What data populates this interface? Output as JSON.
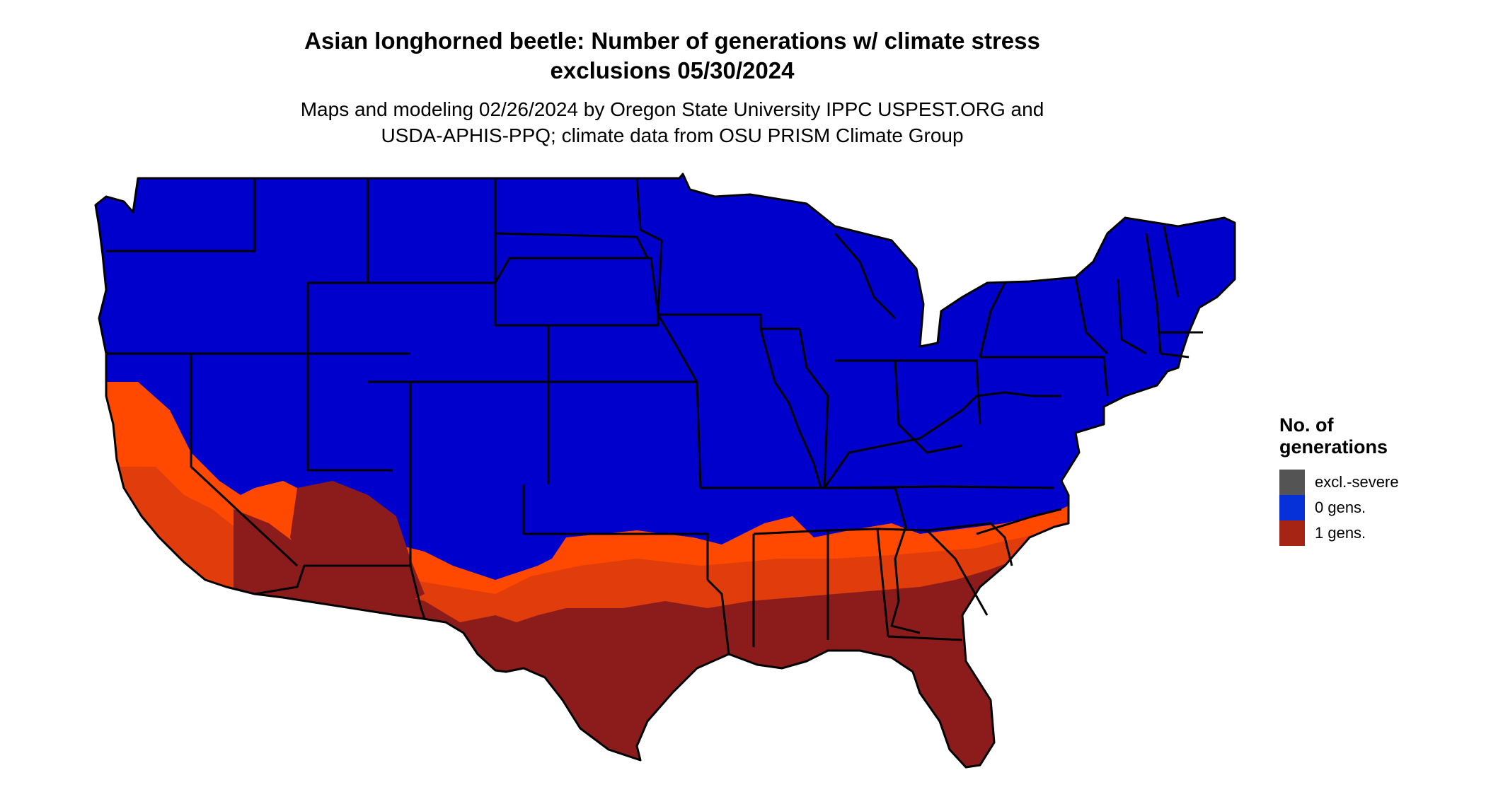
{
  "title": {
    "line1": "Asian longhorned beetle: Number of generations w/ climate stress",
    "line2": "exclusions 05/30/2024"
  },
  "subtitle": {
    "line1": "Maps and modeling 02/26/2024 by Oregon State University IPPC USPEST.ORG and",
    "line2": "USDA-APHIS-PPQ; climate data from OSU PRISM Climate Group"
  },
  "legend": {
    "title_line1": "No. of",
    "title_line2": "generations",
    "items": [
      {
        "label": "excl.-severe",
        "color": "#545454"
      },
      {
        "label": "0 gens.",
        "color": "#0630d8"
      },
      {
        "label": "1 gens.",
        "color": "#a52414"
      }
    ]
  },
  "map_colors": {
    "zero_gens": "#0000cc",
    "one_gens_light": "#ff4800",
    "one_gens_mid": "#e03c0c",
    "one_gens_deep": "#8c1c1c",
    "state_borders": "#000000"
  }
}
